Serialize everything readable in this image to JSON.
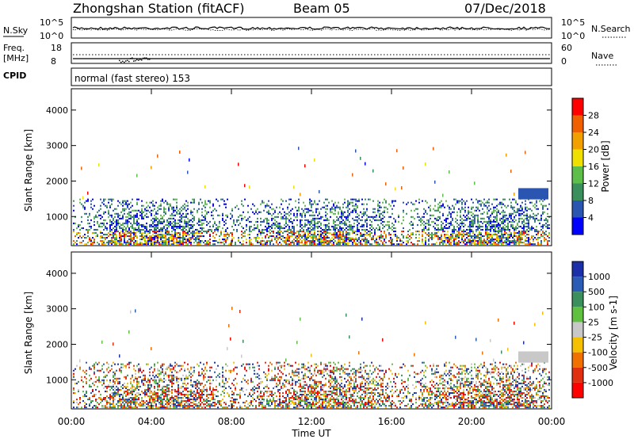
{
  "header": {
    "title": "Zhongshan Station (fitACF)",
    "beam": "Beam 05",
    "date": "07/Dec/2018"
  },
  "noise_panel": {
    "left_label": "N.Sky",
    "left_ticks": [
      "10^5",
      "10^0"
    ],
    "right_ticks": [
      "10^5",
      "10^0"
    ],
    "right_label": "N.Search"
  },
  "freq_panel": {
    "left_label_1": "Freq.",
    "left_label_2": "[MHz]",
    "left_ticks": [
      "18",
      "8"
    ],
    "right_ticks": [
      "60",
      "0"
    ],
    "right_label": "Nave"
  },
  "cpid": {
    "label": "CPID",
    "value": "normal (fast stereo) 153"
  },
  "chart_data": [
    {
      "type": "heatmap",
      "quantity": "Power",
      "ylabel": "Slant Range [km]",
      "xlabel": "Time UT",
      "ylim": [
        180,
        4600
      ],
      "yticks": [
        1000,
        2000,
        3000,
        4000
      ],
      "xticks": [
        "00:00",
        "04:00",
        "08:00",
        "12:00",
        "16:00",
        "20:00",
        "00:00"
      ],
      "colorbar_label": "Power [dB]",
      "colorbar_ticks": [
        "4",
        "8",
        "12",
        "16",
        "20",
        "24",
        "28"
      ],
      "colors": [
        "#0000ff",
        "#2a55b0",
        "#3a8f5c",
        "#5dbf4a",
        "#f0e000",
        "#f2a000",
        "#f06000",
        "#ff0000"
      ]
    },
    {
      "type": "heatmap",
      "quantity": "Velocity",
      "ylabel": "Slant Range [km]",
      "xlabel": "Time UT",
      "ylim": [
        180,
        4600
      ],
      "yticks": [
        1000,
        2000,
        3000,
        4000
      ],
      "xticks": [
        "00:00",
        "04:00",
        "08:00",
        "12:00",
        "16:00",
        "20:00",
        "00:00"
      ],
      "colorbar_label": "Velocity [m s-1]",
      "colorbar_ticks": [
        "1000",
        "500",
        "100",
        "25",
        "-25",
        "-100",
        "-500",
        "-1000"
      ],
      "colors": [
        "#1a2fa8",
        "#2a5cb5",
        "#3a8f5c",
        "#60c040",
        "#c8c8c8",
        "#f5c000",
        "#f07000",
        "#e03010",
        "#ff0000"
      ]
    }
  ]
}
